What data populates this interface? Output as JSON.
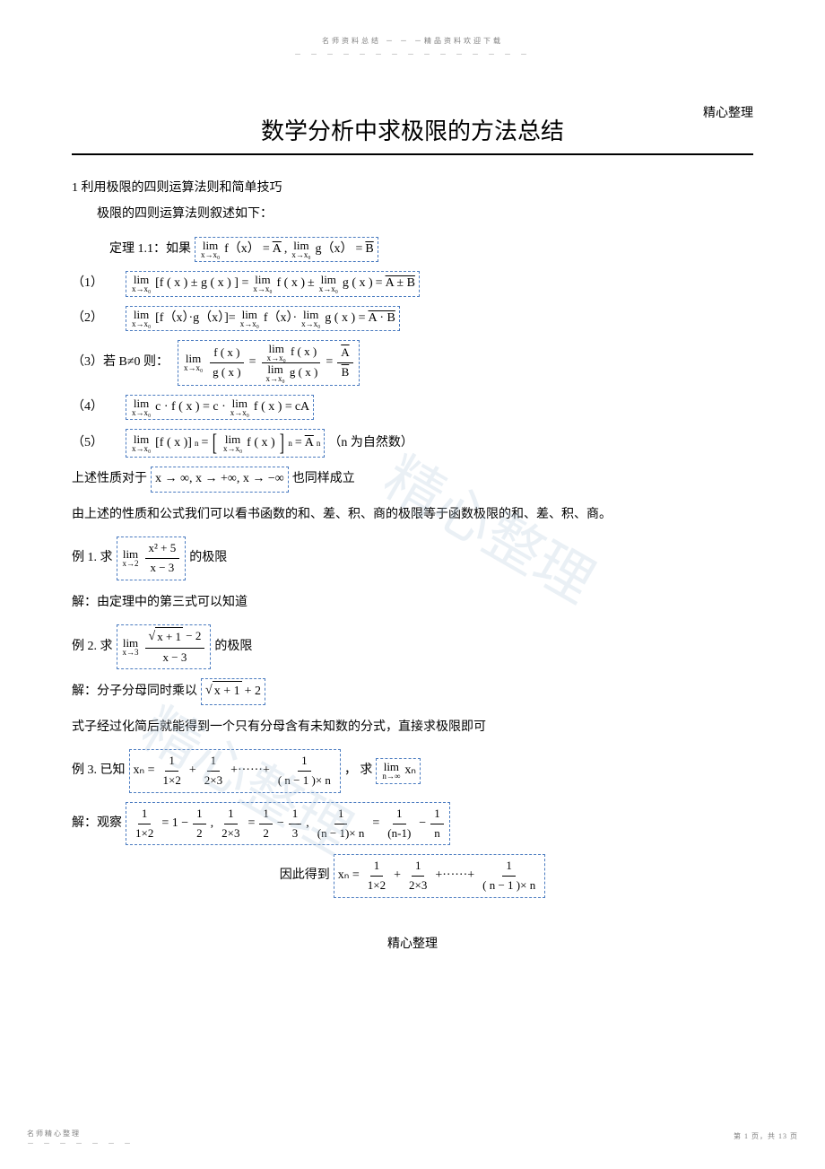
{
  "header": {
    "top_center": "名师资料总结 － － －精品资料欢迎下载",
    "top_dashes": "－ － － － － － － － － － － － － － －",
    "top_right": "精心整理"
  },
  "title": "数学分析中求极限的方法总结",
  "section1": {
    "heading": "1 利用极限的四则运算法则和简单技巧",
    "intro": "极限的四则运算法则叙述如下：",
    "theorem_label": "定理 1.1：如果",
    "item1_label": "（1）",
    "item2_label": "（2）",
    "item3_label": "（3）若 B≠0 则：",
    "item4_label": "（4）",
    "item5_label": "（5）",
    "item5_note": "（n 为自然数）",
    "post1": "上述性质对于",
    "post1_box": "x →  ∞, x →  +∞, x →  −∞",
    "post1_tail": "也同样成立",
    "post2": "由上述的性质和公式我们可以看书函数的和、差、积、商的极限等于函数极限的和、差、积、商。"
  },
  "ex1": {
    "label": "例 1. 求",
    "tail": "的极限",
    "sol_label": "解：由定理中的第三式可以知道"
  },
  "ex2": {
    "label": "例 2. 求",
    "tail": "的极限",
    "sol_label": "解：分子分母同时乘以",
    "post": "式子经过化简后就能得到一个只有分母含有未知数的分式，直接求极限即可"
  },
  "ex3": {
    "label": "例 3. 已知",
    "mid": "， 求",
    "obs_label": "解：观察",
    "therefore": "因此得到"
  },
  "math": {
    "lim": "lim",
    "x_to_x0": "x→x₀",
    "x_to_2": "x→2",
    "x_to_3": "x→3",
    "n_to_inf": "n→∞",
    "fx": "f（x）",
    "gx": "g（x）",
    "fxp": "f ( x )",
    "gxp": "g ( x )",
    "eq": "=",
    "A": "A",
    "B": "B",
    "comma": ",",
    "pm": "±",
    "dot": "·",
    "AplusB": "A ± B",
    "AdotB": "A · B",
    "c": "c",
    "cA": "cA",
    "A_over_B": "A",
    "expr_fn": "[f ( x )]",
    "n": "n",
    "An": "A",
    "x2p5": "x² + 5",
    "xm3": "x − 3",
    "sqrt_xp1": "x + 1",
    "minus2": " − 2",
    "plus2": " + 2",
    "xn": "xₙ",
    "one": "1",
    "two": "2",
    "three": "3",
    "t1x2": "1×2",
    "t2x3": "2×3",
    "nminus1n": "( n − 1 )× n",
    "nminus1n2": "(n − 1)× n",
    "nm1": "(n-1)",
    "dots": "+······+",
    "half": "1",
    "x_series_eq": "xₙ ="
  },
  "footer": {
    "center": "精心整理",
    "bl": "名师精心整理",
    "bl_dashes": "－ － － － － － －",
    "br": "第 1 页，共 13 页"
  },
  "watermark": "精心整理"
}
